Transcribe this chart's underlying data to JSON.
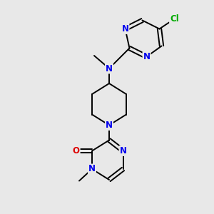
{
  "background_color": "#e8e8e8",
  "bond_color": "#000000",
  "atom_colors": {
    "N": "#0000ee",
    "O": "#dd0000",
    "Cl": "#00aa00",
    "C": "#000000"
  },
  "figsize": [
    3.0,
    3.0
  ],
  "dpi": 100,
  "lw": 1.4,
  "fs": 8.5
}
